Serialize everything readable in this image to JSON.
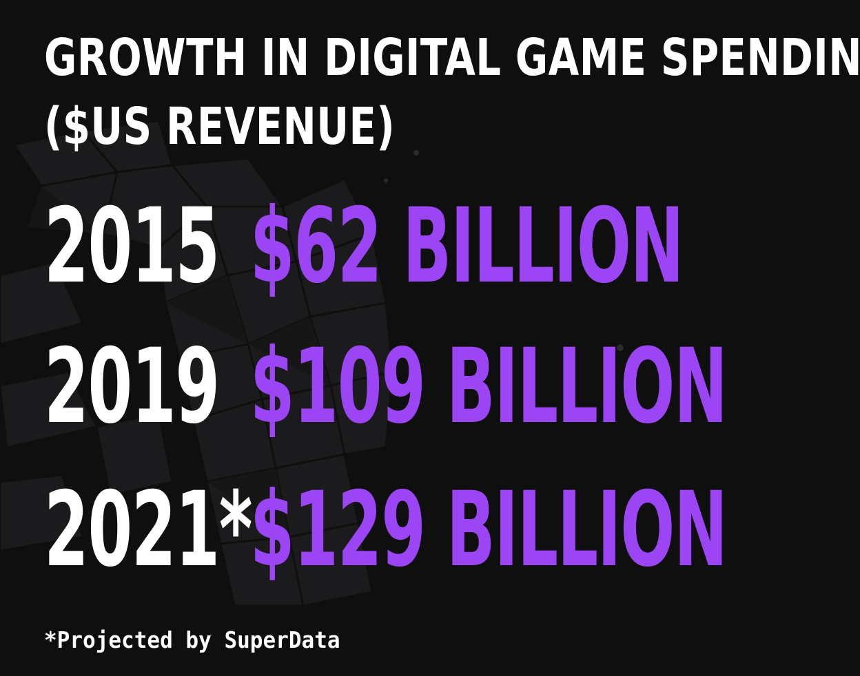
{
  "title": {
    "line1": "GROWTH IN DIGITAL GAME SPENDING",
    "line2": "($US REVENUE)"
  },
  "rows": [
    {
      "year": "2015",
      "amount": "$62 BILLION"
    },
    {
      "year": "2019",
      "amount": "$109 BILLION"
    },
    {
      "year": "2021*",
      "amount": "$129 BILLION"
    }
  ],
  "footnote": "*Projected by SuperData",
  "colors": {
    "background": "#0f0f10",
    "text": "#ffffff",
    "accent": "#9b45f5"
  },
  "background_art": "faint-geometric-polygon-shape"
}
